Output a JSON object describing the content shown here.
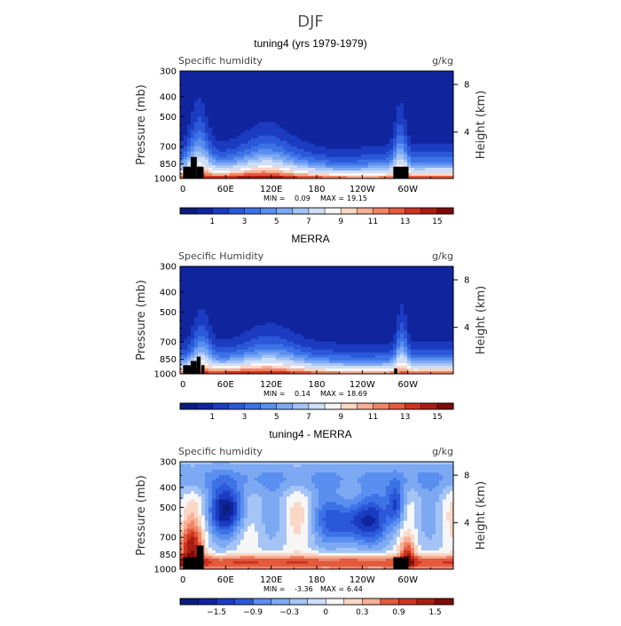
{
  "figure": {
    "title": "DJF"
  },
  "chart_data": [
    {
      "type": "heatmap",
      "panel_title": "tuning4 (yrs 1979-1979)",
      "left_label": "Specific humidity",
      "units": "g/kg",
      "ylabel": "Pressure (mb)",
      "ylabel_right": "Height (km)",
      "pressure_ticks": [
        "300",
        "400",
        "500",
        "700",
        "850",
        "1000"
      ],
      "height_ticks": [
        "8",
        "4"
      ],
      "x_ticks": [
        "0",
        "60E",
        "120E",
        "180",
        "120W",
        "60W"
      ],
      "stats": {
        "min_label": "MIN =",
        "min": "0.09",
        "max_label": "MAX =",
        "max": "19.15"
      },
      "colorbar_labels": [
        "1",
        "3",
        "5",
        "7",
        "9",
        "11",
        "13",
        "15"
      ],
      "levels": [
        0,
        1,
        2,
        3,
        4,
        5,
        6,
        7,
        8,
        9,
        10,
        11,
        12,
        13,
        14,
        15,
        16
      ],
      "palette": "blue-white-red"
    },
    {
      "type": "heatmap",
      "panel_title": "MERRA",
      "left_label": "Specific Humidity",
      "units": "g/kg",
      "ylabel": "Pressure (mb)",
      "ylabel_right": "Height (km)",
      "pressure_ticks": [
        "300",
        "400",
        "500",
        "700",
        "850",
        "1000"
      ],
      "height_ticks": [
        "8",
        "4"
      ],
      "x_ticks": [
        "0",
        "60E",
        "120E",
        "180",
        "120W",
        "60W"
      ],
      "stats": {
        "min_label": "MIN =",
        "min": "0.14",
        "max_label": "MAX =",
        "max": "18.69"
      },
      "colorbar_labels": [
        "1",
        "3",
        "5",
        "7",
        "9",
        "11",
        "13",
        "15"
      ],
      "levels": [
        0,
        1,
        2,
        3,
        4,
        5,
        6,
        7,
        8,
        9,
        10,
        11,
        12,
        13,
        14,
        15,
        16
      ],
      "palette": "blue-white-red"
    },
    {
      "type": "heatmap",
      "panel_title": "tuning4 - MERRA",
      "left_label": "Specific humidity",
      "units": "g/kg",
      "ylabel": "Pressure (mb)",
      "ylabel_right": "Height (km)",
      "pressure_ticks": [
        "300",
        "400",
        "500",
        "700",
        "850",
        "1000"
      ],
      "height_ticks": [
        "8",
        "4"
      ],
      "x_ticks": [
        "0",
        "60E",
        "120E",
        "180",
        "120W",
        "60W"
      ],
      "stats": {
        "min_label": "MIN =",
        "min": "-3.36",
        "max_label": "MAX =",
        "max": "6.44"
      },
      "colorbar_labels": [
        "−1.5",
        "−0.9",
        "−0.3",
        "0",
        "0.3",
        "0.9",
        "1.5"
      ],
      "levels": [
        -2.1,
        -1.8,
        -1.5,
        -1.2,
        -0.9,
        -0.6,
        -0.3,
        0,
        0.3,
        0.6,
        0.9,
        1.2,
        1.5,
        1.8,
        2.1
      ],
      "palette": "blue-white-red"
    }
  ],
  "colors": {
    "palette": [
      "#0b1d7c",
      "#10249e",
      "#1b3cc0",
      "#2a58d8",
      "#3c72e6",
      "#5a8ff0",
      "#7da9f3",
      "#a4c4f5",
      "#cfddf6",
      "#f6f6f6",
      "#fbd7c6",
      "#f6b095",
      "#ef8566",
      "#e35a3d",
      "#cc3421",
      "#a91c12",
      "#7d0c09"
    ],
    "topography": "#000000"
  }
}
